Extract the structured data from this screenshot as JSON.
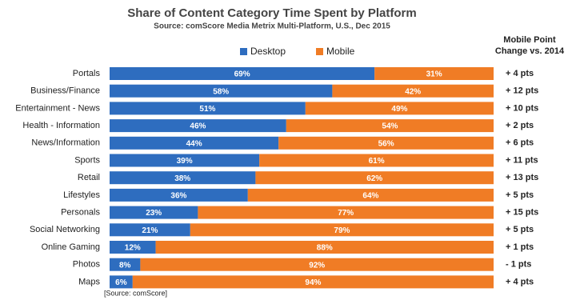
{
  "chart_data": {
    "type": "stacked_bar_horizontal",
    "title": "Share of Content Category Time Spent by Platform",
    "subtitle": "Source: comScore Media Metrix Multi-Platform, U.S., Dec 2015",
    "categories": [
      "Portals",
      "Business/Finance",
      "Entertainment - News",
      "Health - Information",
      "News/Information",
      "Sports",
      "Retail",
      "Lifestyles",
      "Personals",
      "Social Networking",
      "Online Gaming",
      "Photos",
      "Maps"
    ],
    "xlim": [
      0,
      100
    ],
    "series": [
      {
        "name": "Desktop",
        "color": "#2e6dbf",
        "values": [
          69,
          58,
          51,
          46,
          44,
          39,
          38,
          36,
          23,
          21,
          12,
          8,
          6
        ],
        "value_labels": [
          "69%",
          "58%",
          "51%",
          "46%",
          "44%",
          "39%",
          "38%",
          "36%",
          "23%",
          "21%",
          "12%",
          "8%",
          "6%"
        ]
      },
      {
        "name": "Mobile",
        "color": "#f07c25",
        "values": [
          31,
          42,
          49,
          54,
          56,
          61,
          62,
          64,
          77,
          79,
          88,
          92,
          94
        ],
        "value_labels": [
          "31%",
          "42%",
          "49%",
          "54%",
          "56%",
          "61%",
          "62%",
          "64%",
          "77%",
          "79%",
          "88%",
          "92%",
          "94%"
        ]
      }
    ],
    "point_change": {
      "title_lines": [
        "Mobile Point",
        "Change vs. 2014"
      ],
      "values": [
        4,
        12,
        10,
        2,
        6,
        11,
        13,
        5,
        15,
        5,
        1,
        -1,
        4
      ],
      "value_labels": [
        "+ 4 pts",
        "+ 12 pts",
        "+ 10 pts",
        "+ 2 pts",
        "+ 6 pts",
        "+ 11 pts",
        "+ 13 pts",
        "+ 5 pts",
        "+ 15 pts",
        "+ 5 pts",
        "+ 1 pts",
        "- 1 pts",
        "+ 4 pts"
      ],
      "positive_color": "#2f9e3a",
      "negative_color": "#c00000"
    },
    "legend": "top",
    "source_note": "[Source: comScore]"
  }
}
